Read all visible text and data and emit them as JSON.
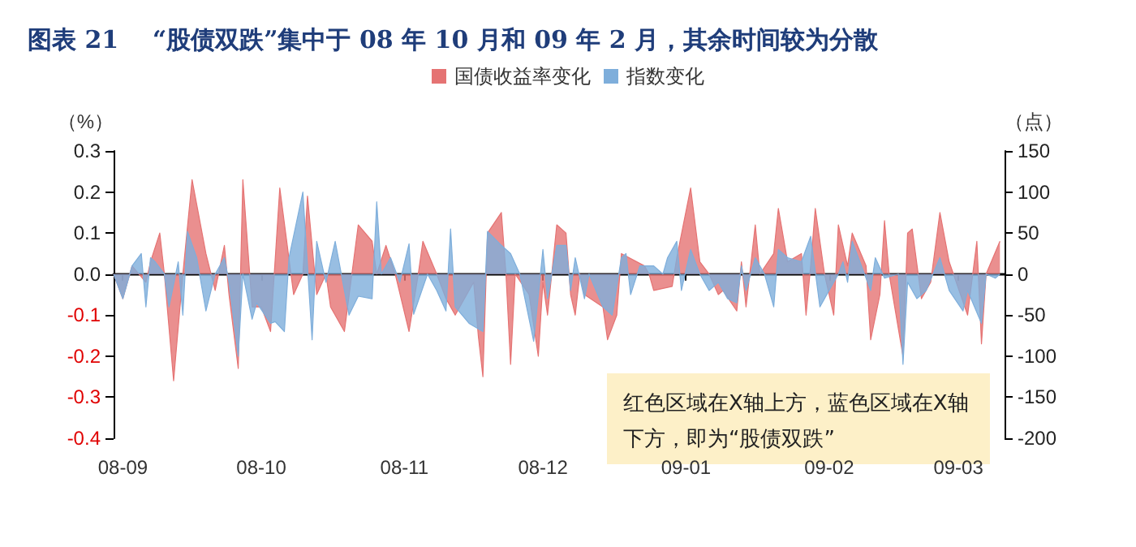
{
  "chart_data": {
    "type": "area",
    "title": "图表 21    “股债双跌”集中于 08 年 10 月和 09 年 2 月，其余时间较为分散",
    "ylabel": "（%）",
    "y2label": "（点）",
    "legend": "top",
    "xlim": [
      "2008-08-30",
      "2009-03-11"
    ],
    "xticks": [
      {
        "value": "2008-09-01",
        "label": "08-09"
      },
      {
        "value": "2008-10-01",
        "label": "08-10"
      },
      {
        "value": "2008-11-01",
        "label": "08-11"
      },
      {
        "value": "2008-12-01",
        "label": "08-12"
      },
      {
        "value": "2009-01-01",
        "label": "09-01"
      },
      {
        "value": "2009-02-01",
        "label": "09-02"
      },
      {
        "value": "2009-03-01",
        "label": "09-03"
      }
    ],
    "ylim": [
      -0.4,
      0.3
    ],
    "yticks": [
      -0.4,
      -0.3,
      -0.2,
      -0.1,
      {
        "value": 0,
        "label": "0.0"
      },
      0.1,
      0.2,
      0.3
    ],
    "y2lim": [
      -200,
      150
    ],
    "y2ticks": [
      -200,
      -150,
      -100,
      -50,
      0,
      50,
      100,
      150
    ],
    "annotations": [
      "红色区域在X轴上方，蓝色区域在X轴下方，即为“股债双跌”"
    ],
    "series": [
      {
        "name": "国债收益率变化",
        "color": "#e57373",
        "x": [
          "2008-08-30",
          "2008-09-01",
          "2008-09-03",
          "2008-09-06",
          "2008-09-07",
          "2008-09-09",
          "2008-09-10",
          "2008-09-12",
          "2008-09-14",
          "2008-09-16",
          "2008-09-19",
          "2008-09-21",
          "2008-09-23",
          "2008-09-24",
          "2008-09-26",
          "2008-09-27",
          "2008-09-29",
          "2008-10-01",
          "2008-10-03",
          "2008-10-05",
          "2008-10-08",
          "2008-10-10",
          "2008-10-11",
          "2008-10-13",
          "2008-10-15",
          "2008-10-16",
          "2008-10-19",
          "2008-10-22",
          "2008-10-25",
          "2008-10-26",
          "2008-10-28",
          "2008-10-30",
          "2008-11-02",
          "2008-11-04",
          "2008-11-05",
          "2008-11-08",
          "2008-11-10",
          "2008-11-12",
          "2008-11-16",
          "2008-11-17",
          "2008-11-18",
          "2008-11-19",
          "2008-11-22",
          "2008-11-23",
          "2008-11-24",
          "2008-11-25",
          "2008-11-28",
          "2008-11-30",
          "2008-12-01",
          "2008-12-02",
          "2008-12-04",
          "2008-12-06",
          "2008-12-07",
          "2008-12-08",
          "2008-12-09",
          "2008-12-10",
          "2008-12-14",
          "2008-12-15",
          "2008-12-17",
          "2008-12-18",
          "2008-12-23",
          "2008-12-24",
          "2008-12-25",
          "2008-12-29",
          "2008-12-30",
          "2009-01-02",
          "2009-01-04",
          "2009-01-06",
          "2009-01-08",
          "2009-01-09",
          "2009-01-12",
          "2009-01-13",
          "2009-01-14",
          "2009-01-16",
          "2009-01-17",
          "2009-01-20",
          "2009-01-21",
          "2009-01-23",
          "2009-01-26",
          "2009-01-27",
          "2009-01-28",
          "2009-01-29",
          "2009-01-31",
          "2009-02-02",
          "2009-02-03",
          "2009-02-05",
          "2009-02-06",
          "2009-02-09",
          "2009-02-10",
          "2009-02-12",
          "2009-02-13",
          "2009-02-14",
          "2009-02-17",
          "2009-02-18",
          "2009-02-19",
          "2009-02-21",
          "2009-02-23",
          "2009-02-25",
          "2009-02-27",
          "2009-03-03",
          "2009-03-05",
          "2009-03-06",
          "2009-03-07",
          "2009-03-10"
        ],
        "values": [
          0,
          -0.06,
          0.02,
          -0.02,
          0.03,
          0.1,
          0,
          -0.26,
          0,
          0.23,
          0.05,
          -0.04,
          0.07,
          -0.05,
          -0.23,
          0.23,
          -0.08,
          -0.08,
          -0.14,
          0.21,
          -0.05,
          0,
          0.19,
          -0.05,
          0,
          -0.08,
          -0.14,
          0.12,
          0.08,
          0,
          0.07,
          0,
          -0.14,
          0,
          0.08,
          0,
          -0.06,
          -0.1,
          -0.02,
          -0.15,
          -0.25,
          0.1,
          0.15,
          0,
          -0.22,
          0,
          -0.05,
          -0.2,
          -0.02,
          -0.1,
          0.12,
          0.1,
          -0.05,
          -0.1,
          0,
          -0.05,
          -0.08,
          -0.16,
          -0.1,
          0.05,
          0.02,
          0,
          -0.04,
          -0.03,
          0.04,
          0.21,
          0.03,
          0,
          -0.05,
          -0.04,
          -0.09,
          0.03,
          -0.08,
          0.12,
          0,
          0.05,
          0.16,
          0.03,
          0.05,
          -0.1,
          0.02,
          0.16,
          0,
          -0.1,
          0.12,
          0.02,
          0.1,
          0.02,
          -0.16,
          -0.05,
          0.13,
          0,
          -0.2,
          0.1,
          0.11,
          -0.06,
          -0.02,
          0.15,
          0.03,
          -0.1,
          0.08,
          -0.17,
          0,
          0.08
        ]
      },
      {
        "name": "指数变化",
        "color": "#7eaedb",
        "axis": "y2",
        "x": [
          "2008-08-30",
          "2008-09-01",
          "2008-09-03",
          "2008-09-05",
          "2008-09-06",
          "2008-09-07",
          "2008-09-08",
          "2008-09-10",
          "2008-09-11",
          "2008-09-13",
          "2008-09-14",
          "2008-09-15",
          "2008-09-17",
          "2008-09-19",
          "2008-09-21",
          "2008-09-23",
          "2008-09-24",
          "2008-09-26",
          "2008-09-27",
          "2008-09-29",
          "2008-09-30",
          "2008-10-03",
          "2008-10-04",
          "2008-10-06",
          "2008-10-07",
          "2008-10-10",
          "2008-10-12",
          "2008-10-13",
          "2008-10-15",
          "2008-10-17",
          "2008-10-20",
          "2008-10-22",
          "2008-10-25",
          "2008-10-26",
          "2008-10-27",
          "2008-10-29",
          "2008-10-31",
          "2008-11-02",
          "2008-11-03",
          "2008-11-06",
          "2008-11-08",
          "2008-11-10",
          "2008-11-11",
          "2008-11-12",
          "2008-11-15",
          "2008-11-18",
          "2008-11-19",
          "2008-11-22",
          "2008-11-24",
          "2008-11-26",
          "2008-11-29",
          "2008-12-01",
          "2008-12-02",
          "2008-12-04",
          "2008-12-06",
          "2008-12-07",
          "2008-12-08",
          "2008-12-10",
          "2008-12-11",
          "2008-12-14",
          "2008-12-16",
          "2008-12-18",
          "2008-12-19",
          "2008-12-20",
          "2008-12-22",
          "2008-12-25",
          "2008-12-27",
          "2008-12-28",
          "2008-12-30",
          "2008-12-31",
          "2009-01-02",
          "2009-01-04",
          "2009-01-06",
          "2009-01-08",
          "2009-01-10",
          "2009-01-12",
          "2009-01-13",
          "2009-01-14",
          "2009-01-16",
          "2009-01-18",
          "2009-01-20",
          "2009-01-21",
          "2009-01-23",
          "2009-01-26",
          "2009-01-28",
          "2009-01-30",
          "2009-02-02",
          "2009-02-03",
          "2009-02-04",
          "2009-02-05",
          "2009-02-06",
          "2009-02-08",
          "2009-02-10",
          "2009-02-11",
          "2009-02-13",
          "2009-02-16",
          "2009-02-17",
          "2009-02-18",
          "2009-02-20",
          "2009-02-22",
          "2009-02-25",
          "2009-02-27",
          "2009-03-02",
          "2009-03-03",
          "2009-03-06",
          "2009-03-07",
          "2009-03-09",
          "2009-03-10"
        ],
        "values": [
          0,
          -30,
          10,
          25,
          -40,
          20,
          15,
          0,
          -40,
          15,
          -50,
          52,
          20,
          -45,
          0,
          20,
          -10,
          -100,
          0,
          -55,
          -35,
          -60,
          -58,
          -70,
          20,
          100,
          -80,
          40,
          -10,
          40,
          -50,
          -27,
          -30,
          88,
          0,
          20,
          -10,
          37,
          -49,
          0,
          -20,
          -45,
          55,
          -40,
          -60,
          -70,
          52,
          35,
          25,
          0,
          -82,
          30,
          -30,
          35,
          35,
          -20,
          20,
          -30,
          0,
          -40,
          -50,
          20,
          25,
          -25,
          10,
          10,
          0,
          20,
          40,
          -20,
          30,
          0,
          -20,
          -10,
          -30,
          -35,
          10,
          -20,
          20,
          0,
          -40,
          30,
          20,
          15,
          46,
          -40,
          -10,
          0,
          15,
          -10,
          40,
          10,
          -20,
          20,
          -5,
          0,
          -110,
          -10,
          -30,
          -20,
          20,
          -20,
          -45,
          -20,
          -60,
          0,
          -5,
          0
        ]
      }
    ]
  }
}
